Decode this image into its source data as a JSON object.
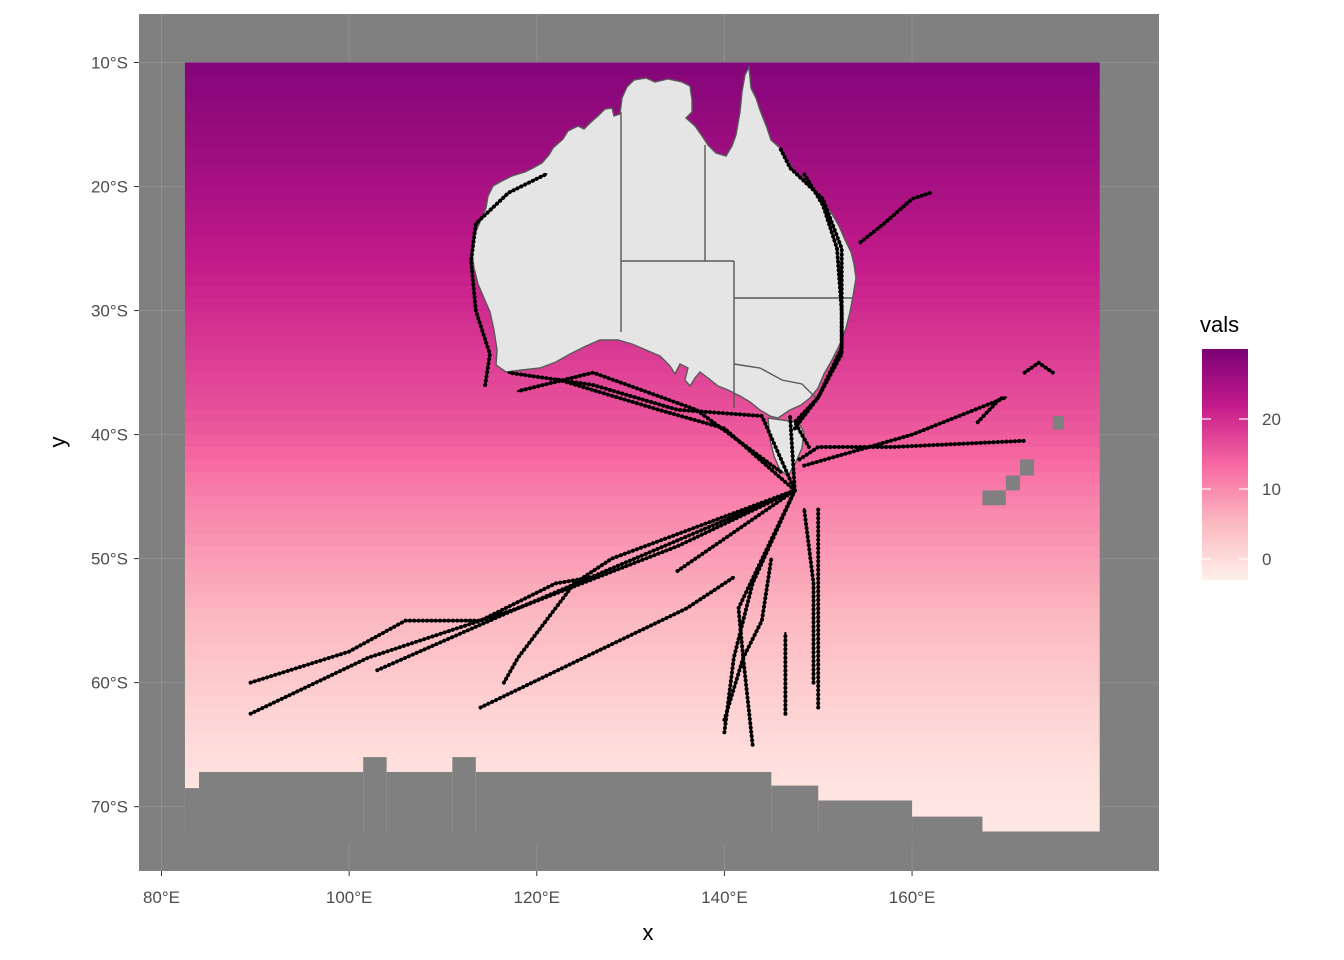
{
  "chart_data": {
    "type": "heatmap",
    "xlabel": "x",
    "ylabel": "y",
    "x_ticks": [
      "80°E",
      "100°E",
      "120°E",
      "140°E",
      "160°E"
    ],
    "y_ticks": [
      "10°S",
      "20°S",
      "30°S",
      "40°S",
      "50°S",
      "60°S",
      "70°S"
    ],
    "xlim": [
      78,
      187
    ],
    "ylim": [
      -75,
      -6
    ],
    "raster_extent": {
      "lon": [
        82.5,
        180
      ],
      "lat": [
        -72,
        -10
      ]
    },
    "legend": {
      "title": "vals",
      "ticks": [
        "20",
        "10",
        "0"
      ],
      "range": [
        -3,
        30
      ],
      "placement": "right"
    },
    "colors": {
      "panel_background": "#808080",
      "land": "#e5e5e5",
      "coastline": "#595959",
      "tracks": "#000000",
      "scale": [
        "#fff0ea",
        "#fbb8c0",
        "#f768a1",
        "#c51b8a",
        "#7a0177"
      ]
    },
    "vals_by_latitude": [
      {
        "lat": -10,
        "val": 29
      },
      {
        "lat": -15,
        "val": 27
      },
      {
        "lat": -20,
        "val": 25
      },
      {
        "lat": -25,
        "val": 22.5
      },
      {
        "lat": -30,
        "val": 20
      },
      {
        "lat": -35,
        "val": 17.5
      },
      {
        "lat": -40,
        "val": 15
      },
      {
        "lat": -45,
        "val": 11
      },
      {
        "lat": -50,
        "val": 8
      },
      {
        "lat": -55,
        "val": 5
      },
      {
        "lat": -60,
        "val": 2.5
      },
      {
        "lat": -65,
        "val": 0
      },
      {
        "lat": -70,
        "val": -1.5
      }
    ],
    "tracks": [
      [
        [
          89.5,
          -60
        ],
        [
          100,
          -57.5
        ],
        [
          106,
          -55
        ],
        [
          114,
          -55
        ],
        [
          122,
          -52
        ],
        [
          126,
          -51.5
        ]
      ],
      [
        [
          89.5,
          -62.5
        ],
        [
          102,
          -58
        ],
        [
          118,
          -54
        ],
        [
          135,
          -49
        ],
        [
          147.5,
          -44.5
        ]
      ],
      [
        [
          103,
          -59
        ],
        [
          118,
          -54
        ],
        [
          132,
          -49.5
        ],
        [
          147.5,
          -44.5
        ]
      ],
      [
        [
          114,
          -62
        ],
        [
          125,
          -58
        ],
        [
          136,
          -54
        ],
        [
          141,
          -51.5
        ]
      ],
      [
        [
          116.5,
          -60
        ],
        [
          118,
          -58
        ],
        [
          124,
          -52
        ],
        [
          128,
          -50
        ],
        [
          147.5,
          -44.5
        ]
      ],
      [
        [
          135,
          -51
        ],
        [
          147.5,
          -44.5
        ]
      ],
      [
        [
          140,
          -64
        ],
        [
          141,
          -58
        ],
        [
          143,
          -52
        ],
        [
          147.5,
          -44.5
        ]
      ],
      [
        [
          143,
          -65
        ],
        [
          142,
          -58
        ],
        [
          141.5,
          -54
        ],
        [
          147.5,
          -44.5
        ]
      ],
      [
        [
          140,
          -63
        ],
        [
          142,
          -58
        ],
        [
          144,
          -55
        ],
        [
          145,
          -50
        ]
      ],
      [
        [
          146.5,
          -62.5
        ],
        [
          146.5,
          -56
        ]
      ],
      [
        [
          149.5,
          -60
        ],
        [
          149.5,
          -52
        ],
        [
          148.5,
          -46
        ]
      ],
      [
        [
          150,
          -62
        ],
        [
          150,
          -46
        ]
      ],
      [
        [
          147.5,
          -44.5
        ],
        [
          147,
          -38.5
        ]
      ],
      [
        [
          147.5,
          -44.5
        ],
        [
          144,
          -38.5
        ],
        [
          135,
          -38
        ],
        [
          126,
          -36
        ],
        [
          117,
          -35
        ]
      ],
      [
        [
          147.5,
          -44.5
        ],
        [
          140,
          -39.5
        ],
        [
          133,
          -38
        ],
        [
          122,
          -35.5
        ]
      ],
      [
        [
          146,
          -43
        ],
        [
          137,
          -38
        ],
        [
          126,
          -35
        ],
        [
          118,
          -36.5
        ]
      ],
      [
        [
          148,
          -42
        ],
        [
          150,
          -41
        ],
        [
          158,
          -41
        ],
        [
          172,
          -40.5
        ]
      ],
      [
        [
          148.5,
          -42.5
        ],
        [
          160,
          -40
        ],
        [
          170,
          -37
        ]
      ],
      [
        [
          149,
          -41
        ],
        [
          147.5,
          -39
        ],
        [
          150,
          -37
        ],
        [
          152.5,
          -33
        ],
        [
          152.5,
          -25
        ],
        [
          150.5,
          -21
        ],
        [
          147,
          -18.5
        ],
        [
          146,
          -17
        ]
      ],
      [
        [
          154.5,
          -24.5
        ],
        [
          157,
          -23
        ],
        [
          160,
          -21
        ],
        [
          162,
          -20.5
        ]
      ],
      [
        [
          114.5,
          -36
        ],
        [
          115,
          -33.5
        ],
        [
          113.5,
          -30
        ],
        [
          113,
          -26
        ],
        [
          113.5,
          -23
        ],
        [
          117,
          -20.5
        ],
        [
          121,
          -19
        ]
      ],
      [
        [
          147.5,
          -39.5
        ],
        [
          150,
          -37
        ],
        [
          152.5,
          -33.5
        ],
        [
          152.5,
          -30
        ],
        [
          152,
          -25
        ],
        [
          150.5,
          -21.5
        ],
        [
          148.5,
          -19
        ]
      ],
      [
        [
          172,
          -35
        ],
        [
          173.5,
          -34.2
        ],
        [
          175,
          -35
        ]
      ],
      [
        [
          167,
          -39
        ],
        [
          169.5,
          -37
        ]
      ]
    ]
  }
}
